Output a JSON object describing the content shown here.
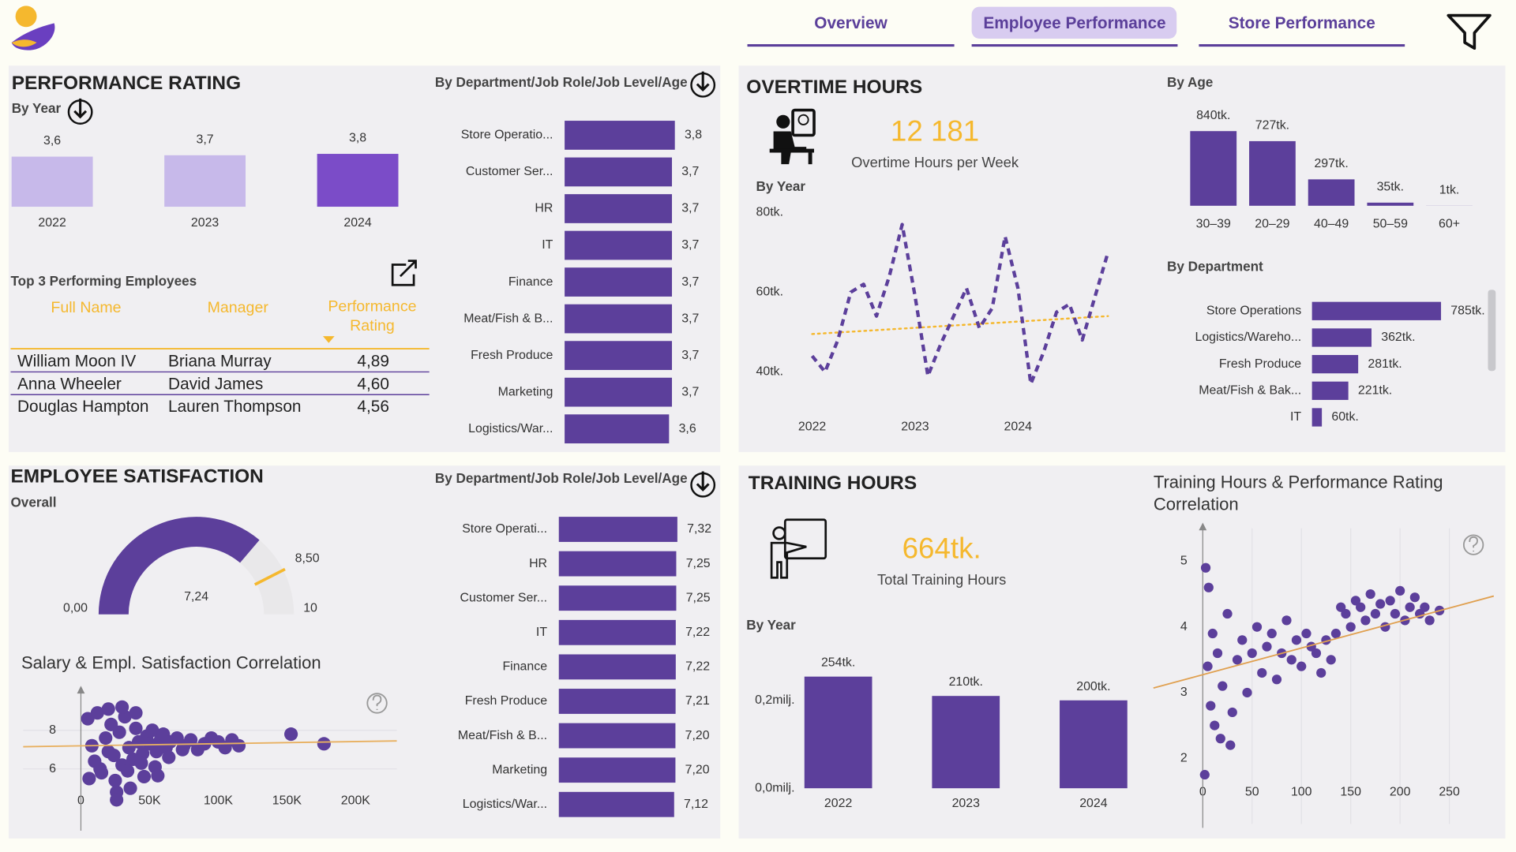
{
  "nav": {
    "tabs": [
      "Overview",
      "Employee Performance",
      "Store Performance"
    ],
    "active": 1
  },
  "panels": [
    {
      "title": "PERFORMANCE RATING"
    },
    {
      "title": "OVERTIME HOURS",
      "kpi": {
        "value": "12 181",
        "label": "Overtime Hours per Week"
      }
    },
    {
      "title": "EMPLOYEE SATISFACTION"
    },
    {
      "title": "TRAINING HOURS",
      "kpi": {
        "value": "664tk.",
        "label": "Total Training Hours"
      }
    }
  ],
  "table": {
    "title": "Top 3 Performing Employees",
    "columns": [
      "Full Name",
      "Manager",
      "Performance Rating"
    ],
    "rows": [
      [
        "William Moon IV",
        "Briana Murray",
        "4,89"
      ],
      [
        "Anna Wheeler",
        "David James",
        "4,60"
      ],
      [
        "Douglas Hampton",
        "Lauren Thompson",
        "4,56"
      ]
    ]
  },
  "chart_data": [
    {
      "type": "bar",
      "title": "By Year",
      "categories": [
        "2022",
        "2023",
        "2024"
      ],
      "values": [
        3.6,
        3.7,
        3.8
      ],
      "value_labels": [
        "3,6",
        "3,7",
        "3,8"
      ],
      "colors": [
        "#c7b9ea",
        "#c7b9ea",
        "#7b4cc8"
      ],
      "label_color": "#f5b82e",
      "ylim": [
        0,
        4
      ]
    },
    {
      "type": "bar",
      "orientation": "horizontal",
      "title": "By Department/Job Role/Job Level/Age",
      "categories": [
        "Store Operatio...",
        "Customer Ser...",
        "HR",
        "IT",
        "Finance",
        "Meat/Fish & B...",
        "Fresh Produce",
        "Marketing",
        "Logistics/War..."
      ],
      "values": [
        3.8,
        3.7,
        3.7,
        3.7,
        3.7,
        3.7,
        3.7,
        3.7,
        3.6
      ],
      "value_labels": [
        "3,8",
        "3,7",
        "3,7",
        "3,7",
        "3,7",
        "3,7",
        "3,7",
        "3,7",
        "3,6"
      ],
      "color": "#5c3f9b",
      "label_color": "#f5b82e",
      "xlim": [
        0,
        4
      ]
    },
    {
      "type": "line",
      "title": "By Year",
      "categories": [
        "2022",
        null,
        null,
        null,
        null,
        null,
        null,
        null,
        "2023",
        null,
        null,
        null,
        null,
        null,
        null,
        null,
        "2024",
        null,
        null,
        null,
        null,
        null,
        null,
        null
      ],
      "values": [
        44000,
        40000,
        48000,
        60000,
        62000,
        54000,
        64000,
        77000,
        59000,
        39000,
        47000,
        54000,
        61000,
        51000,
        56000,
        74000,
        61000,
        37000,
        45000,
        55000,
        57000,
        48000,
        59000,
        70000
      ],
      "color": "#5c3f9b",
      "trend": {
        "values": [
          49500,
          54000
        ],
        "color": "#f5b82e"
      },
      "ylim": [
        35000,
        85000
      ],
      "yticks": [
        {
          "value": 40000,
          "label": "40tk."
        },
        {
          "value": 60000,
          "label": "60tk."
        },
        {
          "value": 80000,
          "label": "80tk."
        }
      ]
    },
    {
      "type": "bar",
      "title": "By Age",
      "categories": [
        "30–39",
        "20–29",
        "40–49",
        "50–59",
        "60+"
      ],
      "values": [
        840000,
        727000,
        297000,
        35000,
        1000
      ],
      "value_labels": [
        "840tk.",
        "727tk.",
        "297tk.",
        "35tk.",
        "1tk."
      ],
      "color": "#5c3f9b",
      "label_color": "#f5b82e",
      "ylim": [
        0,
        1000000
      ]
    },
    {
      "type": "bar",
      "orientation": "horizontal",
      "title": "By Department",
      "categories": [
        "Store Operations",
        "Logistics/Wareho...",
        "Fresh Produce",
        "Meat/Fish & Bak...",
        "IT"
      ],
      "values": [
        785000,
        362000,
        281000,
        221000,
        60000
      ],
      "value_labels": [
        "785tk.",
        "362tk.",
        "281tk.",
        "221tk.",
        "60tk."
      ],
      "color": "#5c3f9b",
      "label_color": "#f5b82e",
      "xlim": [
        0,
        900000
      ]
    },
    {
      "type": "gauge",
      "title": "Overall",
      "value": 7.24,
      "value_label": "7,24",
      "min": 0,
      "min_label": "0,00",
      "max": 10,
      "target": 8.5,
      "target_label": "8,50",
      "color": "#5c3f9b",
      "track_color": "#e9e8ea",
      "target_color": "#f5b82e"
    },
    {
      "type": "scatter",
      "title": "Salary & Empl. Satisfaction Correlation",
      "color": "#5c3f9b",
      "x": [
        5000,
        8000,
        10000,
        12000,
        15000,
        18000,
        20000,
        22000,
        25000,
        28000,
        30000,
        32000,
        35000,
        38000,
        40000,
        42000,
        45000,
        48000,
        50000,
        52000,
        55000,
        58000,
        60000,
        62000,
        65000,
        70000,
        75000,
        80000,
        85000,
        90000,
        95000,
        100000,
        105000,
        110000,
        115000,
        6000,
        14000,
        24000,
        34000,
        44000,
        54000,
        64000,
        74000,
        26000,
        36000,
        46000,
        153000,
        177000,
        56000,
        26000,
        20000,
        30000,
        40000
      ],
      "y": [
        8.6,
        7.2,
        6.4,
        8.9,
        5.8,
        7.6,
        6.9,
        8.3,
        5.4,
        7.9,
        6.2,
        8.7,
        7.1,
        6.5,
        8.1,
        7.4,
        6.8,
        7.7,
        7.3,
        8.0,
        6.9,
        7.5,
        7.8,
        7.1,
        7.4,
        7.6,
        7.2,
        7.5,
        7.0,
        7.3,
        7.6,
        7.4,
        7.1,
        7.5,
        7.2,
        5.5,
        6.0,
        6.7,
        5.9,
        6.3,
        6.1,
        6.6,
        7.0,
        4.8,
        5.0,
        5.6,
        7.8,
        7.3,
        5.65,
        4.4,
        9.1,
        9.2,
        8.9
      ],
      "trend": {
        "x": [
          -42000,
          230000
        ],
        "y": [
          7.15,
          7.45
        ],
        "color": "#e8b060"
      },
      "xlim": [
        -42000,
        230000
      ],
      "ylim": [
        3,
        10
      ],
      "xticks": [
        0,
        {
          "value": 50000,
          "label": "50K"
        },
        {
          "value": 100000,
          "label": "100K"
        },
        {
          "value": 150000,
          "label": "150K"
        },
        {
          "value": 200000,
          "label": "200K"
        }
      ],
      "yticks": [
        6,
        8
      ],
      "grid": "y"
    },
    {
      "type": "bar",
      "orientation": "horizontal",
      "title": "By Department/Job Role/Job Level/Age",
      "categories": [
        "Store Operati...",
        "HR",
        "Customer Ser...",
        "IT",
        "Finance",
        "Fresh Produce",
        "Meat/Fish & B...",
        "Marketing",
        "Logistics/War..."
      ],
      "values": [
        7.32,
        7.25,
        7.25,
        7.22,
        7.22,
        7.21,
        7.2,
        7.2,
        7.12
      ],
      "value_labels": [
        "7,32",
        "7,25",
        "7,25",
        "7,22",
        "7,22",
        "7,21",
        "7,20",
        "7,20",
        "7,12"
      ],
      "color": "#5c3f9b",
      "label_color": "#f5b82e",
      "xlim": [
        0,
        8
      ]
    },
    {
      "type": "bar",
      "title": "By Year",
      "categories": [
        "2022",
        "2023",
        "2024"
      ],
      "values": [
        254000,
        210000,
        200000
      ],
      "value_labels": [
        "254tk.",
        "210tk.",
        "200tk."
      ],
      "color": "#5c3f9b",
      "label_color": "#444",
      "ylim": [
        0,
        300000
      ],
      "yticks": [
        {
          "value": 0,
          "label": "0,0milj."
        },
        {
          "value": 200000,
          "label": "0,2milj."
        }
      ]
    },
    {
      "type": "scatter",
      "title": "Training Hours & Performance Rating Correlation",
      "color": "#5c3f9b",
      "x": [
        2,
        5,
        8,
        10,
        12,
        15,
        20,
        25,
        30,
        35,
        40,
        45,
        50,
        55,
        60,
        65,
        70,
        75,
        80,
        85,
        90,
        95,
        100,
        105,
        110,
        115,
        120,
        125,
        130,
        135,
        140,
        145,
        150,
        155,
        160,
        165,
        170,
        175,
        180,
        185,
        190,
        195,
        200,
        205,
        210,
        215,
        220,
        225,
        230,
        240,
        3,
        6,
        18,
        28
      ],
      "y": [
        1.75,
        3.4,
        2.8,
        3.9,
        2.5,
        3.6,
        3.1,
        4.2,
        2.7,
        3.5,
        3.8,
        3.0,
        3.6,
        4.0,
        3.3,
        3.7,
        3.9,
        3.2,
        3.6,
        4.1,
        3.5,
        3.8,
        3.4,
        3.9,
        3.7,
        3.6,
        3.3,
        3.8,
        3.5,
        3.9,
        4.3,
        4.2,
        4.0,
        4.4,
        4.3,
        4.1,
        4.5,
        4.2,
        4.35,
        4.0,
        4.4,
        4.2,
        4.55,
        4.1,
        4.3,
        4.45,
        4.2,
        4.3,
        4.1,
        4.25,
        4.9,
        4.6,
        2.3,
        2.2
      ],
      "trend": {
        "x": [
          -50,
          295
        ],
        "y": [
          3.07,
          4.47
        ],
        "color": "#e0a050"
      },
      "xlim": [
        -50,
        295
      ],
      "ylim": [
        1,
        5.5
      ],
      "xticks": [
        0,
        50,
        100,
        150,
        200,
        250
      ],
      "yticks": [
        2,
        3,
        4,
        5
      ],
      "grid": "x"
    }
  ]
}
